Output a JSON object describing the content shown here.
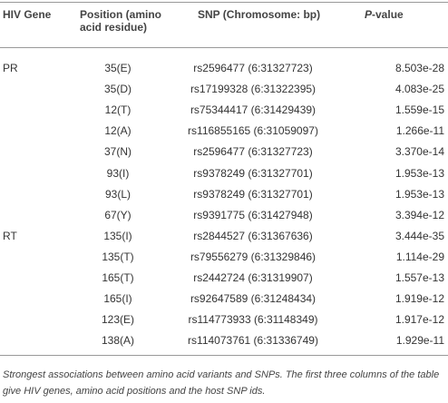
{
  "table": {
    "headers": [
      "HIV Gene",
      "Position (amino acid residue)",
      "SNP (Chromosome: bp)",
      "P-value"
    ],
    "groups": [
      {
        "gene": "PR",
        "rows": [
          [
            "35(E)",
            "rs2596477 (6:31327723)",
            "8.503e-28"
          ],
          [
            "35(D)",
            "rs17199328 (6:31322395)",
            "4.083e-25"
          ],
          [
            "12(T)",
            "rs75344417 (6:31429439)",
            "1.559e-15"
          ],
          [
            "12(A)",
            "rs116855165 (6:31059097)",
            "1.266e-11"
          ],
          [
            "37(N)",
            "rs2596477 (6:31327723)",
            "3.370e-14"
          ],
          [
            "93(I)",
            "rs9378249 (6:31327701)",
            "1.953e-13"
          ],
          [
            "93(L)",
            "rs9378249 (6:31327701)",
            "1.953e-13"
          ],
          [
            "67(Y)",
            "rs9391775 (6:31427948)",
            "3.394e-12"
          ]
        ]
      },
      {
        "gene": "RT",
        "rows": [
          [
            "135(I)",
            "rs2844527 (6:31367636)",
            "3.444e-35"
          ],
          [
            "135(T)",
            "rs79556279 (6:31329846)",
            "1.114e-29"
          ],
          [
            "165(T)",
            "rs2442724 (6:31319907)",
            "1.557e-13"
          ],
          [
            "165(I)",
            "rs92647589 (6:31248434)",
            "1.919e-12"
          ],
          [
            "123(E)",
            "rs114773933 (6:31148349)",
            "1.917e-12"
          ],
          [
            "138(A)",
            "rs114073761 (6:31336749)",
            "1.929e-11"
          ]
        ]
      }
    ],
    "caption": "Strongest associations between amino acid variants and SNPs. The first three columns of the table give HIV genes, amino acid positions and the host SNP ids."
  }
}
